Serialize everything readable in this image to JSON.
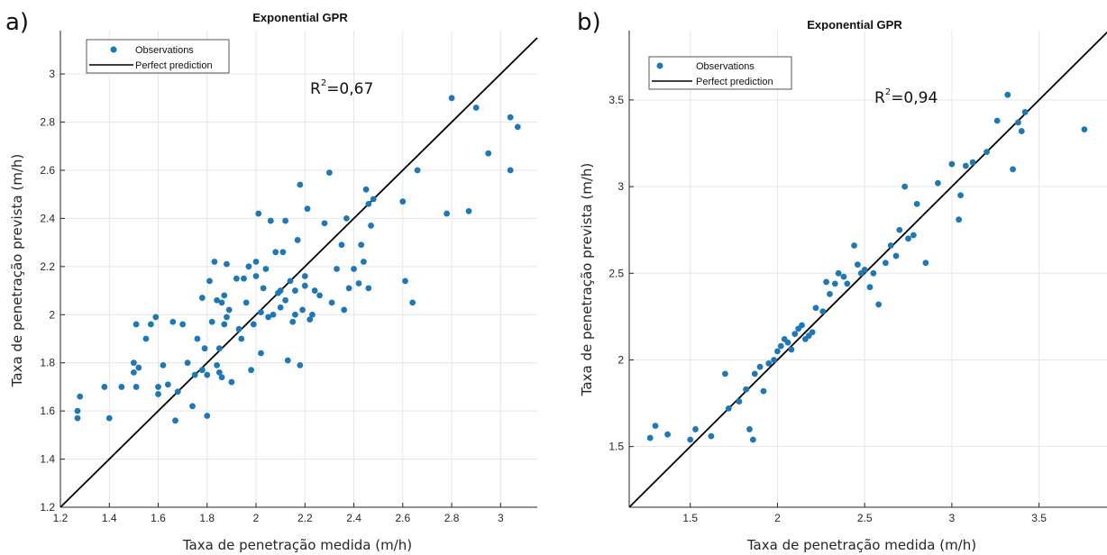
{
  "panels": [
    {
      "label": "a)",
      "annotation_r2": {
        "prefix": "R",
        "sup": "2",
        "value": "=0,67"
      },
      "chart_data": {
        "type": "scatter",
        "title": "Exponential GPR",
        "xlabel": "Taxa de penetração medida (m/h)",
        "ylabel": "Taxa de penetração prevista (m/h)",
        "xlim": [
          1.2,
          3.15
        ],
        "ylim": [
          1.2,
          3.18
        ],
        "xticks": [
          1.2,
          1.4,
          1.6,
          1.8,
          2,
          2.2,
          2.4,
          2.6,
          2.8,
          3
        ],
        "xtick_labels": [
          "1.2",
          "1.4",
          "1.6",
          "1.8",
          "2",
          "2.2",
          "2.4",
          "2.6",
          "2.8",
          "3"
        ],
        "yticks": [
          1.2,
          1.4,
          1.6,
          1.8,
          2,
          2.2,
          2.4,
          2.6,
          2.8,
          3
        ],
        "ytick_labels": [
          "1.2",
          "1.4",
          "1.6",
          "1.8",
          "2",
          "2.2",
          "2.4",
          "2.6",
          "2.8",
          "3"
        ],
        "grid": true,
        "legend": {
          "position": "top-left",
          "entries": [
            "Observations",
            "Perfect prediction"
          ]
        },
        "series": [
          {
            "name": "Observations",
            "type": "scatter",
            "color": "#1f77b4",
            "x": [
              1.27,
              1.27,
              1.28,
              1.4,
              1.38,
              1.45,
              1.5,
              1.5,
              1.51,
              1.51,
              1.52,
              1.55,
              1.57,
              1.59,
              1.6,
              1.6,
              1.62,
              1.64,
              1.66,
              1.67,
              1.68,
              1.7,
              1.72,
              1.74,
              1.75,
              1.76,
              1.78,
              1.78,
              1.79,
              1.8,
              1.8,
              1.81,
              1.82,
              1.83,
              1.84,
              1.84,
              1.85,
              1.85,
              1.86,
              1.86,
              1.87,
              1.87,
              1.88,
              1.88,
              1.89,
              1.9,
              1.92,
              1.93,
              1.94,
              1.95,
              1.96,
              1.97,
              1.98,
              1.99,
              2.0,
              2.0,
              2.01,
              2.02,
              2.02,
              2.03,
              2.04,
              2.05,
              2.06,
              2.07,
              2.08,
              2.09,
              2.1,
              2.1,
              2.11,
              2.12,
              2.12,
              2.13,
              2.14,
              2.15,
              2.16,
              2.16,
              2.17,
              2.18,
              2.18,
              2.19,
              2.2,
              2.2,
              2.21,
              2.22,
              2.23,
              2.24,
              2.26,
              2.28,
              2.3,
              2.31,
              2.33,
              2.35,
              2.36,
              2.37,
              2.38,
              2.4,
              2.42,
              2.43,
              2.44,
              2.45,
              2.46,
              2.46,
              2.47,
              2.48,
              2.6,
              2.61,
              2.64,
              2.66,
              2.78,
              2.8,
              2.87,
              2.9,
              2.95,
              3.04,
              3.04,
              3.07
            ],
            "y": [
              1.57,
              1.6,
              1.66,
              1.57,
              1.7,
              1.7,
              1.76,
              1.8,
              1.96,
              1.7,
              1.78,
              1.9,
              1.96,
              1.99,
              1.7,
              1.67,
              1.79,
              1.71,
              1.97,
              1.56,
              1.68,
              1.96,
              1.8,
              1.62,
              1.75,
              1.9,
              1.77,
              2.07,
              1.86,
              1.75,
              1.58,
              2.14,
              1.97,
              2.22,
              1.79,
              2.06,
              1.86,
              1.76,
              2.05,
              1.74,
              2.08,
              1.96,
              2.21,
              1.99,
              2.02,
              1.72,
              2.15,
              1.94,
              1.9,
              2.15,
              2.05,
              2.2,
              1.77,
              1.96,
              2.22,
              2.16,
              2.42,
              2.01,
              1.84,
              2.11,
              2.19,
              1.99,
              2.39,
              2.0,
              2.26,
              2.09,
              2.1,
              2.03,
              2.26,
              2.06,
              2.39,
              1.81,
              2.14,
              1.97,
              2.0,
              2.1,
              2.31,
              2.54,
              1.79,
              2.02,
              2.16,
              2.12,
              2.44,
              1.98,
              2.0,
              2.1,
              2.08,
              2.38,
              2.59,
              2.05,
              2.19,
              2.29,
              2.02,
              2.4,
              2.11,
              2.19,
              2.13,
              2.29,
              2.22,
              2.52,
              2.11,
              2.46,
              2.37,
              2.48,
              2.47,
              2.14,
              2.05,
              2.6,
              2.42,
              2.9,
              2.43,
              2.86,
              2.67,
              2.82,
              2.6,
              2.78
            ]
          },
          {
            "name": "Perfect prediction",
            "type": "line",
            "color": "#000000",
            "x": [
              1.2,
              3.15
            ],
            "y": [
              1.2,
              3.15
            ]
          }
        ]
      }
    },
    {
      "label": "b)",
      "annotation_r2": {
        "prefix": "R",
        "sup": "2",
        "value": "=0,94"
      },
      "chart_data": {
        "type": "scatter",
        "title": "Exponential GPR",
        "xlabel": "Taxa de penetração medida (m/h)",
        "ylabel": "Taxa de penetração prevista (m/h)",
        "xlim": [
          1.15,
          3.9
        ],
        "ylim": [
          1.15,
          3.9
        ],
        "xticks": [
          1.5,
          2,
          2.5,
          3,
          3.5
        ],
        "xtick_labels": [
          "1.5",
          "2",
          "2.5",
          "3",
          "3.5"
        ],
        "yticks": [
          1.5,
          2,
          2.5,
          3,
          3.5
        ],
        "ytick_labels": [
          "1.5",
          "2",
          "2.5",
          "3",
          "3.5"
        ],
        "grid": true,
        "legend": {
          "position": "top-left",
          "entries": [
            "Observations",
            "Perfect prediction"
          ]
        },
        "series": [
          {
            "name": "Observations",
            "type": "scatter",
            "color": "#1f77b4",
            "x": [
              1.27,
              1.3,
              1.37,
              1.5,
              1.53,
              1.62,
              1.7,
              1.72,
              1.78,
              1.82,
              1.84,
              1.86,
              1.87,
              1.9,
              1.92,
              1.95,
              1.98,
              2.0,
              2.02,
              2.04,
              2.06,
              2.08,
              2.1,
              2.12,
              2.14,
              2.16,
              2.18,
              2.2,
              2.22,
              2.26,
              2.28,
              2.3,
              2.33,
              2.35,
              2.38,
              2.4,
              2.44,
              2.46,
              2.48,
              2.5,
              2.53,
              2.55,
              2.58,
              2.62,
              2.65,
              2.68,
              2.7,
              2.73,
              2.75,
              2.78,
              2.8,
              2.85,
              2.92,
              3.0,
              3.04,
              3.05,
              3.08,
              3.12,
              3.2,
              3.26,
              3.32,
              3.35,
              3.38,
              3.4,
              3.42,
              3.76
            ],
            "y": [
              1.55,
              1.62,
              1.57,
              1.54,
              1.6,
              1.56,
              1.92,
              1.72,
              1.76,
              1.83,
              1.6,
              1.54,
              1.92,
              1.96,
              1.82,
              1.98,
              2.0,
              2.05,
              2.08,
              2.12,
              2.1,
              2.06,
              2.15,
              2.18,
              2.2,
              2.12,
              2.14,
              2.16,
              2.3,
              2.28,
              2.45,
              2.38,
              2.44,
              2.5,
              2.48,
              2.44,
              2.66,
              2.55,
              2.5,
              2.52,
              2.42,
              2.5,
              2.32,
              2.56,
              2.66,
              2.6,
              2.75,
              3.0,
              2.7,
              2.72,
              2.9,
              2.56,
              3.02,
              3.13,
              2.81,
              2.95,
              3.12,
              3.14,
              3.2,
              3.38,
              3.53,
              3.1,
              3.37,
              3.32,
              3.43,
              3.33
            ]
          },
          {
            "name": "Perfect prediction",
            "type": "line",
            "color": "#000000",
            "x": [
              1.15,
              3.9
            ],
            "y": [
              1.15,
              3.9
            ]
          }
        ]
      }
    }
  ]
}
